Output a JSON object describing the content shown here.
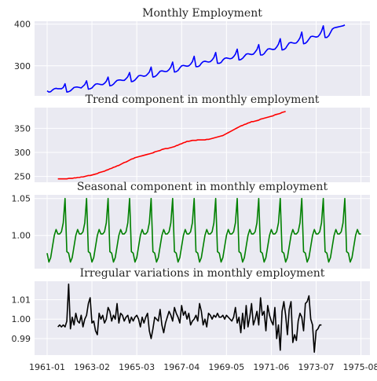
{
  "chart_data": [
    {
      "type": "line",
      "title": "Monthly Employment",
      "color": "#0000ff",
      "start": "1961-01",
      "ylim": [
        228,
        407
      ],
      "yticks": [
        300,
        400
      ],
      "values": [
        240,
        237,
        238,
        242,
        245,
        246,
        245,
        245,
        245,
        248,
        257,
        237,
        238,
        240,
        244,
        248,
        249,
        249,
        248,
        247,
        251,
        255,
        264,
        244,
        245,
        247,
        252,
        256,
        257,
        256,
        255,
        255,
        258,
        263,
        273,
        252,
        253,
        256,
        261,
        265,
        266,
        266,
        265,
        265,
        269,
        274,
        284,
        262,
        263,
        266,
        271,
        276,
        277,
        276,
        275,
        276,
        280,
        285,
        297,
        273,
        274,
        277,
        282,
        287,
        288,
        287,
        286,
        287,
        291,
        297,
        309,
        285,
        286,
        289,
        295,
        300,
        301,
        300,
        299,
        300,
        304,
        310,
        323,
        298,
        298,
        300,
        306,
        310,
        311,
        310,
        309,
        310,
        314,
        320,
        332,
        306,
        306,
        308,
        314,
        318,
        319,
        318,
        317,
        318,
        322,
        328,
        340,
        314,
        315,
        318,
        323,
        328,
        329,
        328,
        327,
        328,
        333,
        339,
        351,
        326,
        326,
        329,
        335,
        340,
        341,
        340,
        339,
        340,
        345,
        352,
        365,
        338,
        339,
        342,
        349,
        355,
        356,
        355,
        354,
        355,
        360,
        367,
        381,
        353,
        354,
        358,
        364,
        370,
        371,
        370,
        369,
        370,
        375,
        383,
        396,
        368,
        368,
        372,
        380,
        388,
        391,
        392,
        393,
        394,
        395,
        396,
        398
      ]
    },
    {
      "type": "line",
      "title": "Trend component in monthly employment",
      "color": "#ff0000",
      "start": "1961-07",
      "ylim": [
        238,
        393
      ],
      "yticks": [
        250,
        300,
        350
      ],
      "values": [
        245,
        245,
        245,
        245,
        245,
        245,
        246,
        246,
        246,
        247,
        247,
        248,
        248,
        249,
        249,
        250,
        251,
        252,
        252,
        253,
        254,
        255,
        256,
        258,
        259,
        260,
        261,
        263,
        264,
        266,
        267,
        269,
        270,
        272,
        273,
        275,
        277,
        279,
        280,
        282,
        284,
        286,
        287,
        289,
        290,
        291,
        292,
        293,
        294,
        295,
        296,
        297,
        298,
        299,
        301,
        302,
        303,
        304,
        306,
        307,
        308,
        308,
        309,
        310,
        311,
        312,
        314,
        315,
        317,
        318,
        320,
        321,
        323,
        323,
        324,
        325,
        325,
        325,
        326,
        326,
        326,
        326,
        326,
        327,
        327,
        328,
        329,
        330,
        331,
        332,
        333,
        334,
        335,
        337,
        339,
        341,
        343,
        345,
        347,
        349,
        351,
        353,
        355,
        356,
        358,
        359,
        361,
        362,
        364,
        364,
        365,
        366,
        367,
        369,
        370,
        371,
        372,
        373,
        374,
        375,
        376,
        378,
        379,
        380,
        381,
        383,
        384,
        385
      ]
    },
    {
      "type": "line",
      "title": "Seasonal component in monthly employment",
      "color": "#008000",
      "start": "1961-01",
      "ylim": [
        0.955,
        1.055
      ],
      "yticks": [
        1.0,
        1.05
      ],
      "pattern": [
        0.976,
        0.964,
        0.97,
        0.985,
        1.0,
        1.008,
        1.002,
        1.002,
        1.005,
        1.017,
        1.05,
        0.978
      ],
      "months": 176
    },
    {
      "type": "line",
      "title": "Irregular variations in monthly employment",
      "color": "#000000",
      "start": "1961-07",
      "ylim": [
        0.9815,
        1.0195
      ],
      "yticks": [
        0.99,
        1.0,
        1.01
      ],
      "values": [
        0.996,
        0.997,
        0.996,
        0.997,
        0.996,
        0.999,
        1.018,
        0.995,
        1.001,
        0.997,
        1.003,
        0.999,
        0.998,
        1.002,
        0.996,
        1.0,
        1.002,
        1.008,
        1.011,
        0.998,
        0.999,
        0.994,
        0.992,
        1.003,
        1.0,
        1.002,
        0.998,
        1.0,
        1.006,
        1.004,
        0.999,
        1.002,
        1.0,
        1.008,
        0.998,
        1.003,
        1.002,
        0.999,
        1.001,
        1.002,
        0.998,
        1.001,
        0.999,
        1.001,
        1.002,
        1.0,
        0.996,
        1.001,
        0.998,
        1.001,
        1.003,
        0.994,
        0.99,
        0.995,
        1.001,
        1.0,
        0.999,
        1.005,
        0.997,
        0.993,
        0.998,
        1.001,
        1.004,
        1.002,
        0.999,
        1.006,
        1.003,
        1.001,
        0.998,
        1.007,
        1.002,
        1.004,
        1.0,
        1.003,
        0.997,
        0.999,
        1.0,
        1.002,
        0.999,
        1.008,
        1.004,
        0.997,
        1.0,
        0.996,
        1.003,
        1.002,
        1.0,
        1.002,
        1.001,
        1.003,
        1.001,
        1.001,
        1.002,
        1.0,
        1.002,
        1.001,
        1.0,
        0.999,
        1.001,
        1.006,
        0.998,
        1.001,
        0.993,
        1.003,
        0.995,
        1.007,
        0.996,
        1.001,
        1.008,
        0.997,
        1.0,
        1.004,
        0.997,
        1.011,
        1.002,
        1.004,
        0.994,
        1.007,
        1.002,
        0.999,
        0.997,
        1.006,
        0.99,
        0.997,
        0.984,
        1.004,
        1.009,
        1.002,
        0.992,
        1.005,
        1.009,
        0.988,
        0.992,
        0.989,
        0.999,
        1.003,
        1.001,
        0.994,
        1.008,
        1.009,
        1.012,
        1.0,
        0.997,
        0.983,
        0.994,
        0.995,
        0.997,
        0.997
      ]
    }
  ],
  "x_axis": {
    "start": "1961-01",
    "end": "1975-08",
    "ticks": [
      "1961-01",
      "1963-02",
      "1965-03",
      "1967-04",
      "1969-05",
      "1971-06",
      "1973-07",
      "1975-08"
    ]
  }
}
